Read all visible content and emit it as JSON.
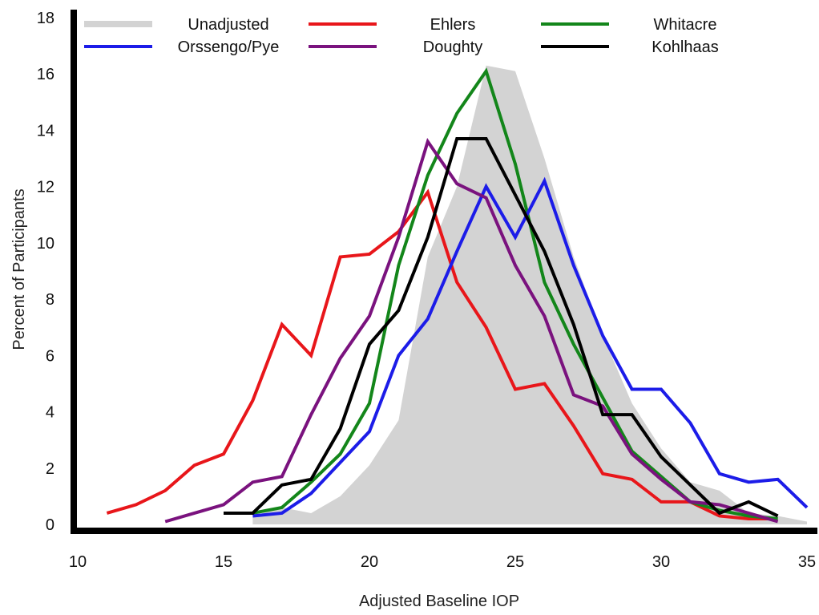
{
  "chart_data": {
    "type": "line",
    "xlabel": "Adjusted Baseline IOP",
    "ylabel": "Percent of Participants",
    "xlim": [
      10,
      35
    ],
    "ylim": [
      0,
      18
    ],
    "x_ticks": [
      "10",
      "15",
      "20",
      "25",
      "30",
      "35"
    ],
    "y_ticks": [
      "0",
      "2",
      "4",
      "6",
      "8",
      "10",
      "12",
      "14",
      "16",
      "18"
    ],
    "grid": false,
    "legend_position": "top",
    "series": [
      {
        "name": "Unadjusted",
        "style": "filled-area",
        "color": "#d3d3d3",
        "x": [
          16,
          17,
          18,
          19,
          20,
          21,
          22,
          23,
          24,
          25,
          26,
          27,
          28,
          29,
          30,
          31,
          32,
          33,
          34,
          35
        ],
        "y": [
          0.3,
          0.6,
          0.4,
          1.0,
          2.1,
          3.7,
          9.5,
          12.0,
          16.3,
          16.1,
          13.0,
          9.5,
          6.7,
          4.3,
          2.7,
          1.5,
          1.2,
          0.4,
          0.3,
          0.1
        ]
      },
      {
        "name": "Ehlers",
        "color": "#e8161a",
        "x": [
          11,
          12,
          13,
          14,
          15,
          16,
          17,
          18,
          19,
          20,
          21,
          22,
          23,
          24,
          25,
          26,
          27,
          28,
          29,
          30,
          31,
          32,
          33,
          34
        ],
        "y": [
          0.4,
          0.7,
          1.2,
          2.1,
          2.5,
          4.4,
          7.1,
          6.0,
          9.5,
          9.6,
          10.4,
          11.8,
          8.6,
          7.0,
          4.8,
          5.0,
          3.5,
          1.8,
          1.6,
          0.8,
          0.8,
          0.3,
          0.2,
          0.2
        ]
      },
      {
        "name": "Whitacre",
        "color": "#13861a",
        "x": [
          16,
          17,
          18,
          19,
          20,
          21,
          22,
          23,
          24,
          25,
          26,
          27,
          28,
          29,
          30,
          31,
          32,
          33,
          34
        ],
        "y": [
          0.4,
          0.6,
          1.5,
          2.5,
          4.3,
          9.2,
          12.4,
          14.6,
          16.1,
          12.8,
          8.6,
          6.4,
          4.5,
          2.6,
          1.7,
          0.8,
          0.5,
          0.3,
          0.2
        ]
      },
      {
        "name": "Orssengo/Pye",
        "color": "#1c1ce8",
        "x": [
          16,
          17,
          18,
          19,
          20,
          21,
          22,
          23,
          24,
          25,
          26,
          27,
          28,
          29,
          30,
          31,
          32,
          33,
          34,
          35
        ],
        "y": [
          0.3,
          0.4,
          1.1,
          2.2,
          3.3,
          6.0,
          7.3,
          9.7,
          12.0,
          10.2,
          12.2,
          9.2,
          6.7,
          4.8,
          4.8,
          3.6,
          1.8,
          1.5,
          1.6,
          0.6
        ]
      },
      {
        "name": "Doughty",
        "color": "#7a127e",
        "x": [
          13,
          14,
          15,
          16,
          17,
          18,
          19,
          20,
          21,
          22,
          23,
          24,
          25,
          26,
          27,
          28,
          29,
          30,
          31,
          32,
          33,
          34
        ],
        "y": [
          0.1,
          0.4,
          0.7,
          1.5,
          1.7,
          3.9,
          5.9,
          7.4,
          10.2,
          13.6,
          12.1,
          11.6,
          9.2,
          7.4,
          4.6,
          4.2,
          2.5,
          1.6,
          0.8,
          0.7,
          0.4,
          0.1
        ]
      },
      {
        "name": "Kohlhaas",
        "color": "#000000",
        "x": [
          15,
          16,
          17,
          18,
          19,
          20,
          21,
          22,
          23,
          24,
          25,
          26,
          27,
          28,
          29,
          30,
          31,
          32,
          33,
          34
        ],
        "y": [
          0.4,
          0.4,
          1.4,
          1.6,
          3.4,
          6.4,
          7.6,
          10.2,
          13.7,
          13.7,
          11.7,
          9.7,
          7.1,
          3.9,
          3.9,
          2.4,
          1.4,
          0.4,
          0.8,
          0.3
        ]
      }
    ]
  }
}
